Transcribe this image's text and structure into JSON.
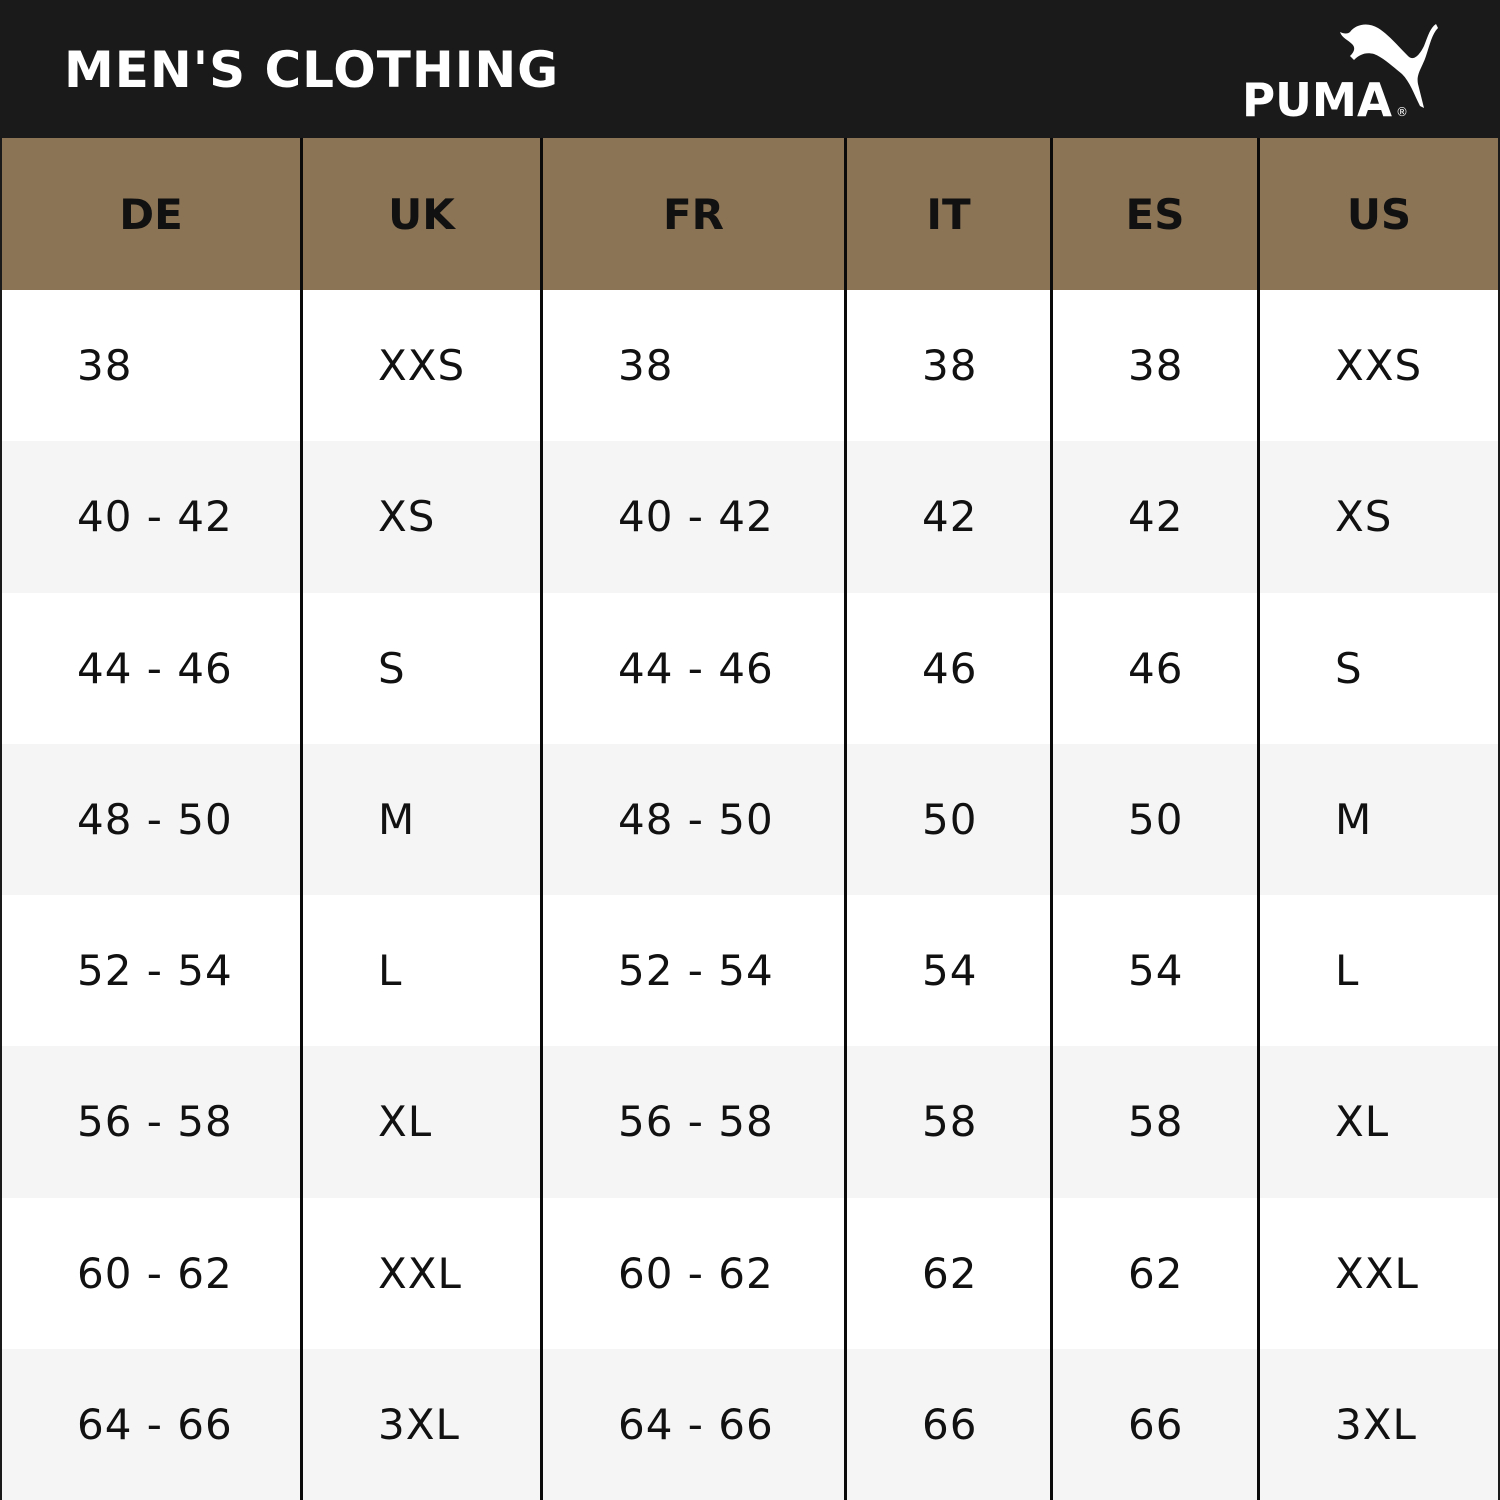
{
  "header": {
    "title": "MEN'S CLOTHING",
    "logo_text": "PUMA",
    "logo_mark": "®"
  },
  "colors": {
    "header_bg": "#1a1a1a",
    "column_header_bg": "#8b7355",
    "row_alt_bg": "#f5f5f5"
  },
  "table": {
    "columns": [
      "DE",
      "UK",
      "FR",
      "IT",
      "ES",
      "US"
    ],
    "rows": [
      [
        "38",
        "XXS",
        "38",
        "38",
        "38",
        "XXS"
      ],
      [
        "40 - 42",
        "XS",
        "40 - 42",
        "42",
        "42",
        "XS"
      ],
      [
        "44 - 46",
        "S",
        "44 - 46",
        "46",
        "46",
        "S"
      ],
      [
        "48 - 50",
        "M",
        "48 - 50",
        "50",
        "50",
        "M"
      ],
      [
        "52 - 54",
        "L",
        "52 - 54",
        "54",
        "54",
        "L"
      ],
      [
        "56 - 58",
        "XL",
        "56 - 58",
        "58",
        "58",
        "XL"
      ],
      [
        "60 - 62",
        "XXL",
        "60 - 62",
        "62",
        "62",
        "XXL"
      ],
      [
        "64 - 66",
        "3XL",
        "64 - 66",
        "66",
        "66",
        "3XL"
      ]
    ]
  }
}
